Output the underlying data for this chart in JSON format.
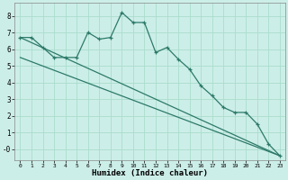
{
  "background_color": "#cceee8",
  "grid_color": "#aaddcc",
  "line_color": "#2d7a6a",
  "xlabel": "Humidex (Indice chaleur)",
  "xlim": [
    -0.5,
    23.5
  ],
  "ylim": [
    -0.65,
    8.8
  ],
  "x_ticks": [
    0,
    1,
    2,
    3,
    4,
    5,
    6,
    7,
    8,
    9,
    10,
    11,
    12,
    13,
    14,
    15,
    16,
    17,
    18,
    19,
    20,
    21,
    22,
    23
  ],
  "y_ticks": [
    0,
    1,
    2,
    3,
    4,
    5,
    6,
    7,
    8
  ],
  "y_tick_labels": [
    "-0",
    "1",
    "2",
    "3",
    "4",
    "5",
    "6",
    "7",
    "8"
  ],
  "zigzag_x": [
    0,
    1,
    2,
    3,
    4,
    5,
    6,
    7,
    8,
    9,
    10,
    11,
    12,
    13,
    14,
    15,
    16,
    17,
    18,
    19,
    20,
    21,
    22,
    23
  ],
  "zigzag_y": [
    6.7,
    6.7,
    6.1,
    5.5,
    5.5,
    5.5,
    7.0,
    6.6,
    6.7,
    8.2,
    7.6,
    7.6,
    5.8,
    6.1,
    5.4,
    4.8,
    3.8,
    3.2,
    2.5,
    2.2,
    2.2,
    1.5,
    0.3,
    -0.4
  ],
  "trend1_x": [
    0,
    23
  ],
  "trend1_y": [
    6.7,
    -0.4
  ],
  "trend2_x": [
    0,
    23
  ],
  "trend2_y": [
    5.5,
    -0.4
  ],
  "figwidth": 3.2,
  "figheight": 2.0,
  "dpi": 100
}
